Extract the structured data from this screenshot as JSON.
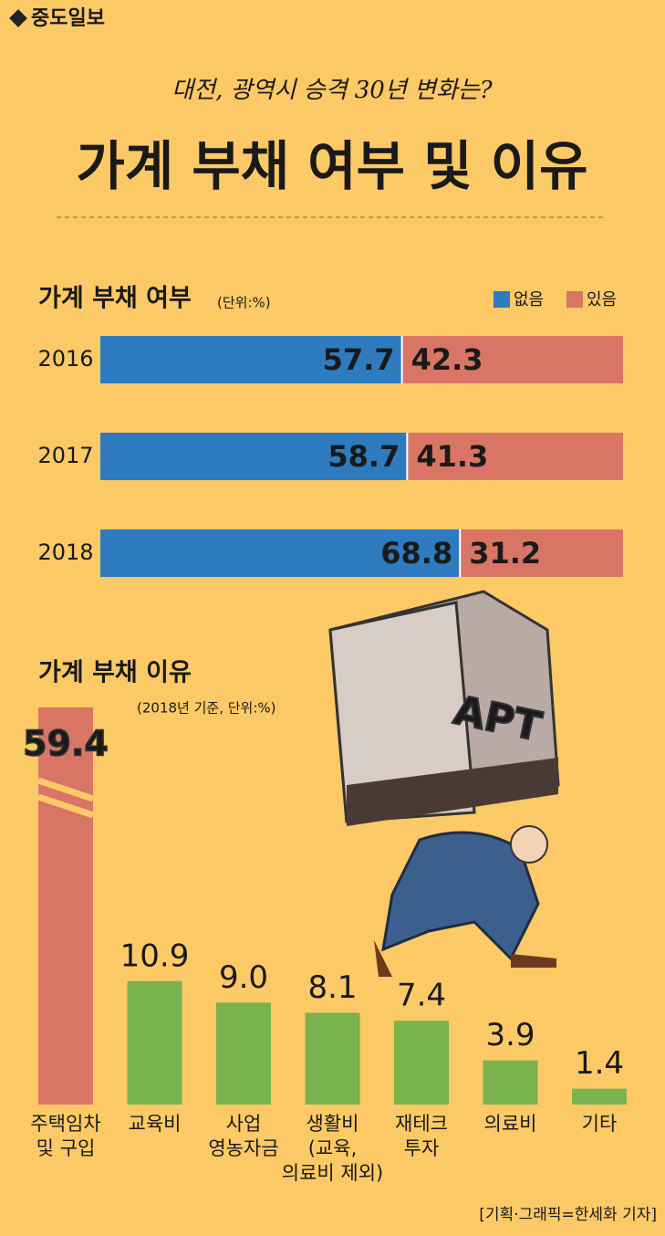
{
  "header": {
    "brand": "중도일보",
    "supertitle": "대전, 광역시 승격 30년 변화는?",
    "title": "가계 부채 여부 및 이유"
  },
  "chart_data": [
    {
      "type": "stacked-hbar",
      "title": "가계 부채 여부",
      "unit": "(단위:%)",
      "categories": [
        "2016",
        "2017",
        "2018"
      ],
      "series": [
        {
          "name": "없음",
          "color": "#2e7bbf",
          "values": [
            57.7,
            58.7,
            68.8
          ]
        },
        {
          "name": "있음",
          "color": "#d97565",
          "values": [
            42.3,
            41.3,
            31.2
          ]
        }
      ],
      "legend": "top-right"
    },
    {
      "type": "bar",
      "title": "가계 부채 이유",
      "subtitle": "(2018년 기준, 단위:%)",
      "categories": [
        "주택임차\n및 구입",
        "교육비",
        "사업\n영농자금",
        "생활비\n(교육,\n의료비 제외)",
        "재테크\n투자",
        "의료비",
        "기타"
      ],
      "values": [
        59.4,
        10.9,
        9.0,
        8.1,
        7.4,
        3.9,
        1.4
      ],
      "value_labels": [
        "59.4",
        "10.9",
        "9.0",
        "8.1",
        "7.4",
        "3.9",
        "1.4"
      ],
      "colors": [
        "#d97565",
        "#7ab24e",
        "#7ab24e",
        "#7ab24e",
        "#7ab24e",
        "#7ab24e",
        "#7ab24e"
      ]
    }
  ],
  "illustration": {
    "label": "APT"
  },
  "credit": "[기획·그래픽=한세화 기자]"
}
